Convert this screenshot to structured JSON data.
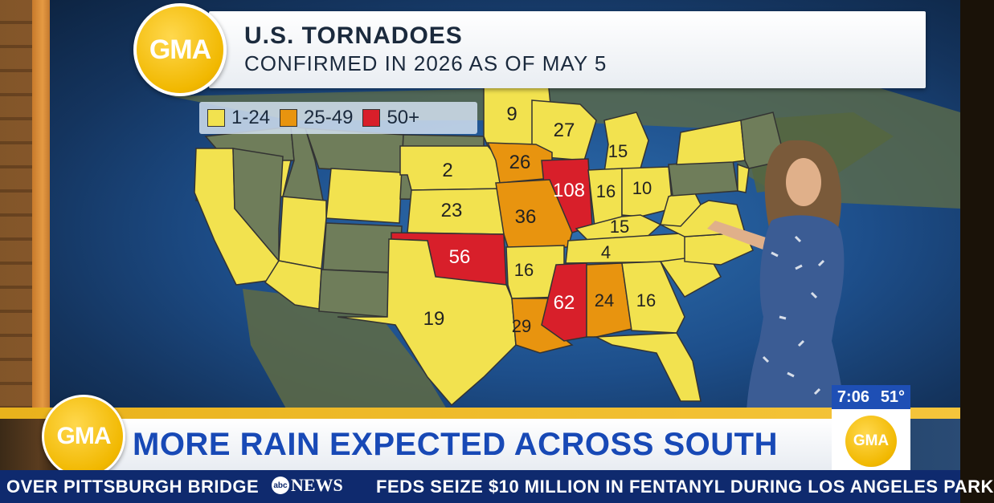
{
  "graphic": {
    "title": "U.S. TORNADOES",
    "subtitle": "CONFIRMED IN 2026 AS OF MAY 5",
    "logo_text": "GMA"
  },
  "legend": [
    {
      "label": "1-24",
      "color": "#f2e24f"
    },
    {
      "label": "25-49",
      "color": "#e8940f"
    },
    {
      "label": "50+",
      "color": "#d81f2a"
    }
  ],
  "colors": {
    "low": "#f2e24f",
    "mid": "#e8940f",
    "high": "#d81f2a",
    "no_data": "#6f7d5a",
    "gma_yellow": "#f1b800",
    "headline_blue": "#1849b6",
    "ticker_navy": "#0f2a6e"
  },
  "states": {
    "MN": "9",
    "WI": "27",
    "MI": "15",
    "NE": "2",
    "IA": "26",
    "IL": "108",
    "IN": "16",
    "OH": "10",
    "KS": "23",
    "MO": "36",
    "KY": "15",
    "TN": "4",
    "OK": "56",
    "AR": "16",
    "TX": "19",
    "LA": "29",
    "MS": "62",
    "AL": "24",
    "GA": "16"
  },
  "lower_third": {
    "logo_text": "GMA",
    "headline": "MORE RAIN EXPECTED ACROSS SOUTH",
    "time": "7:06",
    "temp": "51°",
    "corner_logo_text": "GMA"
  },
  "ticker": {
    "left_text": "OVER PITTSBURGH BRIDGE",
    "network_abc": "abc",
    "network_news": "NEWS",
    "right_text": "FEDS SEIZE $10 MILLION IN FENTANYL DURING LOS ANGELES PARK"
  }
}
